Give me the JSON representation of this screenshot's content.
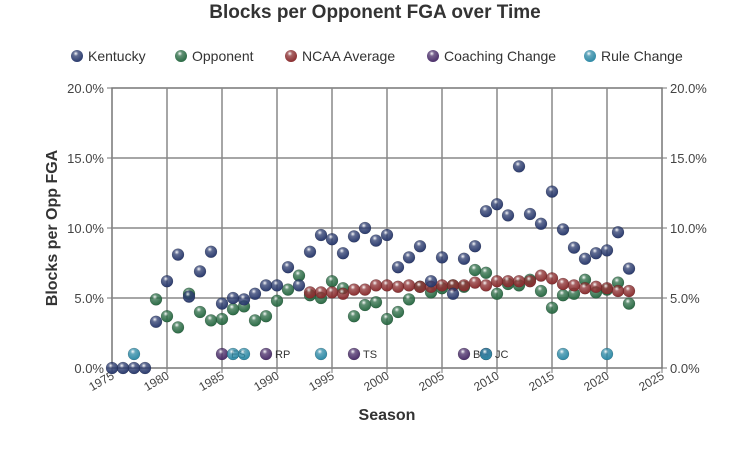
{
  "chart_data": {
    "type": "scatter",
    "title": "Blocks per Opponent FGA over Time",
    "xlabel": "Season",
    "ylabel": "Blocks per Opp FGA",
    "xlim": [
      1975,
      2025
    ],
    "ylim": [
      0,
      20
    ],
    "x_ticks": [
      "1975",
      "1980",
      "1985",
      "1990",
      "1995",
      "2000",
      "2005",
      "2010",
      "2015",
      "2020",
      "2025"
    ],
    "y_ticks": [
      "0.0%",
      "5.0%",
      "10.0%",
      "15.0%",
      "20.0%"
    ],
    "grid": true,
    "legend_position": "top",
    "colors": {
      "Kentucky": "#2b3b6e",
      "Opponent": "#2b6b45",
      "NCAA Average": "#8a2e30",
      "Coaching Change": "#4b2f6a",
      "Rule Change": "#2f8aa6"
    },
    "series": [
      {
        "name": "Kentucky",
        "x": [
          1975,
          1976,
          1977,
          1978,
          1979,
          1980,
          1981,
          1982,
          1983,
          1984,
          1985,
          1986,
          1987,
          1988,
          1989,
          1990,
          1991,
          1992,
          1993,
          1994,
          1995,
          1996,
          1997,
          1998,
          1999,
          2000,
          2001,
          2002,
          2003,
          2004,
          2005,
          2006,
          2007,
          2008,
          2009,
          2010,
          2011,
          2012,
          2013,
          2014,
          2015,
          2016,
          2017,
          2018,
          2019,
          2020,
          2021,
          2022
        ],
        "y": [
          0,
          0,
          0,
          0,
          3.3,
          6.2,
          8.1,
          5.1,
          6.9,
          8.3,
          4.6,
          5.0,
          4.9,
          5.3,
          5.9,
          5.9,
          7.2,
          5.9,
          8.3,
          9.5,
          9.2,
          8.2,
          9.4,
          10.0,
          9.1,
          9.5,
          7.2,
          7.9,
          8.7,
          6.2,
          7.9,
          5.3,
          7.8,
          8.7,
          11.2,
          11.7,
          10.9,
          14.4,
          11.0,
          10.3,
          12.6,
          9.9,
          8.6,
          7.8,
          8.2,
          8.4,
          9.7,
          7.1
        ]
      },
      {
        "name": "Opponent",
        "x": [
          1979,
          1980,
          1981,
          1982,
          1983,
          1984,
          1985,
          1986,
          1987,
          1988,
          1989,
          1990,
          1991,
          1992,
          1993,
          1994,
          1995,
          1996,
          1997,
          1998,
          1999,
          2000,
          2001,
          2002,
          2003,
          2004,
          2005,
          2006,
          2007,
          2008,
          2009,
          2010,
          2011,
          2012,
          2013,
          2014,
          2015,
          2016,
          2017,
          2018,
          2019,
          2020,
          2021,
          2022
        ],
        "y": [
          4.9,
          3.7,
          2.9,
          5.3,
          4.0,
          3.4,
          3.5,
          4.2,
          4.4,
          3.4,
          3.7,
          4.8,
          5.6,
          6.6,
          5.2,
          5.0,
          6.2,
          5.7,
          3.7,
          4.5,
          4.7,
          3.5,
          4.0,
          4.9,
          5.8,
          5.4,
          5.7,
          5.9,
          5.8,
          7.0,
          6.8,
          5.3,
          6.0,
          5.9,
          6.3,
          5.5,
          4.3,
          5.2,
          5.3,
          6.3,
          5.4,
          5.6,
          6.1,
          4.6
        ]
      },
      {
        "name": "NCAA Average",
        "x": [
          1993,
          1994,
          1995,
          1996,
          1997,
          1998,
          1999,
          2000,
          2001,
          2002,
          2003,
          2004,
          2005,
          2006,
          2007,
          2008,
          2009,
          2010,
          2011,
          2012,
          2013,
          2014,
          2015,
          2016,
          2017,
          2018,
          2019,
          2020,
          2021,
          2022
        ],
        "y": [
          5.4,
          5.4,
          5.4,
          5.3,
          5.6,
          5.6,
          5.9,
          5.9,
          5.8,
          5.9,
          5.8,
          5.8,
          5.9,
          5.9,
          5.9,
          6.1,
          5.9,
          6.2,
          6.2,
          6.2,
          6.2,
          6.6,
          6.4,
          6.0,
          5.9,
          5.7,
          5.8,
          5.7,
          5.5,
          5.5
        ]
      },
      {
        "name": "Coaching Change",
        "x": [
          1985,
          1989,
          1997,
          2007,
          2009
        ],
        "y": [
          1,
          1,
          1,
          1,
          1
        ],
        "labels": [
          "ES",
          "RP",
          "TS",
          "BG",
          "JC"
        ]
      },
      {
        "name": "Rule Change",
        "x": [
          1977,
          1986,
          1987,
          1994,
          2009,
          2016,
          2020
        ],
        "y": [
          1,
          1,
          1,
          1,
          1,
          1,
          1
        ]
      }
    ]
  }
}
